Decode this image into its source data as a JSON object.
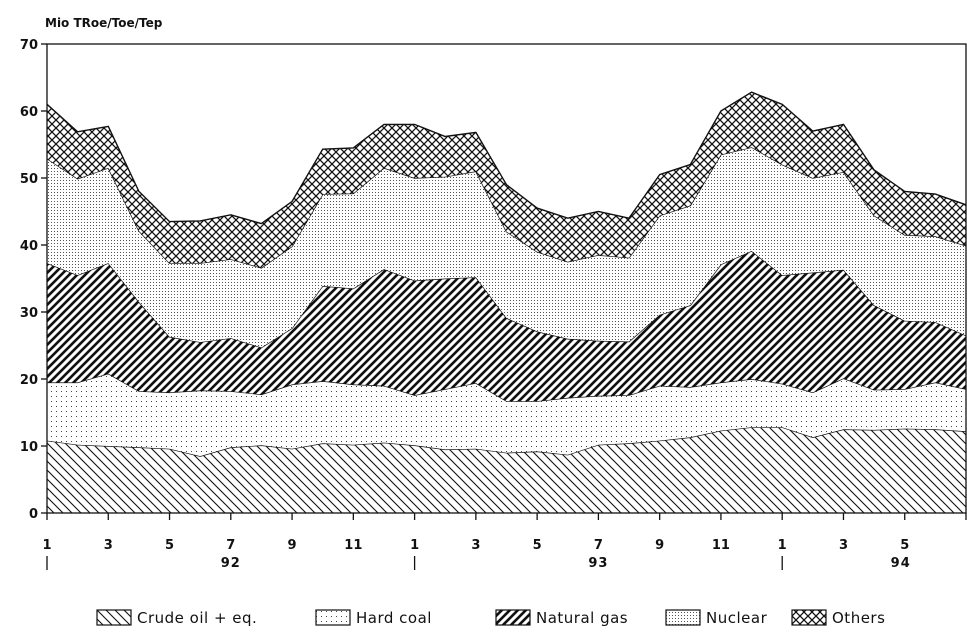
{
  "chart_data": {
    "type": "area",
    "stacked": true,
    "unit_label": "Mio TRoe/Toe/Tep",
    "ylim": [
      0,
      70
    ],
    "y_ticks": [
      0,
      10,
      20,
      30,
      40,
      50,
      60,
      70
    ],
    "x_tick_labels": [
      "1",
      "3",
      "5",
      "7",
      "9",
      "11",
      "1",
      "3",
      "5",
      "7",
      "9",
      "11",
      "1",
      "3",
      "5"
    ],
    "years": [
      "92",
      "93",
      "94"
    ],
    "categories": [
      "1992-01",
      "1992-02",
      "1992-03",
      "1992-04",
      "1992-05",
      "1992-06",
      "1992-07",
      "1992-08",
      "1992-09",
      "1992-10",
      "1992-11",
      "1992-12",
      "1993-01",
      "1993-02",
      "1993-03",
      "1993-04",
      "1993-05",
      "1993-06",
      "1993-07",
      "1993-08",
      "1993-09",
      "1993-10",
      "1993-11",
      "1993-12",
      "1994-01",
      "1994-02",
      "1994-03",
      "1994-04",
      "1994-05",
      "1994-06",
      "1994-07"
    ],
    "series": [
      {
        "name": "Crude oil + eq.",
        "pattern": "hatch-back",
        "values": [
          10.8,
          10.2,
          10.0,
          9.8,
          9.6,
          8.5,
          9.8,
          10.1,
          9.6,
          10.4,
          10.2,
          10.5,
          10.1,
          9.5,
          9.6,
          9.0,
          9.2,
          8.7,
          10.2,
          10.4,
          10.8,
          11.3,
          12.3,
          12.8,
          12.8,
          11.3,
          12.5,
          12.4,
          12.6,
          12.5,
          12.2
        ]
      },
      {
        "name": "Hard coal",
        "pattern": "dots-sparse",
        "values": [
          8.7,
          9.3,
          10.8,
          8.4,
          8.4,
          9.8,
          8.4,
          7.6,
          9.6,
          9.3,
          9.0,
          8.5,
          7.5,
          9.0,
          9.8,
          7.7,
          7.5,
          8.5,
          7.3,
          7.2,
          8.2,
          7.5,
          7.2,
          7.2,
          6.5,
          6.7,
          7.6,
          6.0,
          5.9,
          7.0,
          6.3
        ]
      },
      {
        "name": "Natural gas",
        "pattern": "hatch-forward",
        "values": [
          17.8,
          16.0,
          16.5,
          13.3,
          8.3,
          7.2,
          7.9,
          7.0,
          8.4,
          14.2,
          14.3,
          17.4,
          17.1,
          16.5,
          15.8,
          12.4,
          10.4,
          8.8,
          8.2,
          8.0,
          10.6,
          12.2,
          17.6,
          19.1,
          16.2,
          17.9,
          16.2,
          12.6,
          10.2,
          9.0,
          8.0
        ]
      },
      {
        "name": "Nuclear",
        "pattern": "dots-dense",
        "values": [
          15.6,
          14.4,
          14.2,
          10.6,
          11.0,
          11.8,
          11.8,
          11.9,
          12.2,
          13.7,
          14.2,
          15.1,
          15.3,
          15.2,
          15.8,
          12.9,
          11.9,
          11.5,
          12.8,
          12.5,
          14.8,
          14.9,
          16.4,
          15.5,
          16.5,
          14.1,
          14.6,
          13.4,
          12.8,
          12.8,
          13.4
        ]
      },
      {
        "name": "Others",
        "pattern": "crosshatch",
        "values": [
          8.1,
          7.0,
          6.2,
          5.9,
          6.2,
          6.3,
          6.6,
          6.6,
          6.7,
          6.7,
          6.8,
          6.5,
          8.0,
          6.0,
          5.8,
          7.0,
          6.5,
          6.5,
          6.5,
          5.9,
          6.1,
          6.1,
          6.5,
          8.2,
          9.0,
          7.0,
          7.1,
          6.8,
          6.5,
          6.3,
          6.1
        ]
      }
    ],
    "legend_position": "bottom",
    "grid": false
  }
}
